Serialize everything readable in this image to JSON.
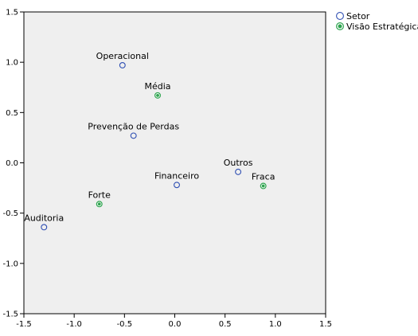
{
  "chart_data": {
    "type": "scatter",
    "xlim": [
      -1.5,
      1.5
    ],
    "ylim": [
      -1.5,
      1.5
    ],
    "x_ticks": [
      -1.5,
      -1.0,
      -0.5,
      0.0,
      0.5,
      1.0,
      1.5
    ],
    "y_ticks": [
      -1.5,
      -1.0,
      -0.5,
      0.0,
      0.5,
      1.0,
      1.5
    ],
    "x_tick_labels": [
      "-1.5",
      "-1.0",
      "-0.5",
      "0.0",
      "0.5",
      "1.0",
      "1.5"
    ],
    "y_tick_labels": [
      "-1.5",
      "-1.0",
      "-0.5",
      "0.0",
      "0.5",
      "1.0",
      "1.5"
    ],
    "plot_background": "#efefef",
    "grid": false,
    "legend_position": "top-right",
    "series": [
      {
        "name": "Setor",
        "marker": "open-circle",
        "color": "#2f4fb3",
        "points": [
          {
            "label": "Operacional",
            "x": -0.52,
            "y": 0.97
          },
          {
            "label": "Prevenção de Perdas",
            "x": -0.41,
            "y": 0.27
          },
          {
            "label": "Financeiro",
            "x": 0.02,
            "y": -0.22
          },
          {
            "label": "Outros",
            "x": 0.63,
            "y": -0.09
          },
          {
            "label": "Auditoria",
            "x": -1.3,
            "y": -0.64
          }
        ]
      },
      {
        "name": "Visão Estratégica",
        "marker": "filled-circle",
        "color": "#2ea44f",
        "points": [
          {
            "label": "Média",
            "x": -0.17,
            "y": 0.67
          },
          {
            "label": "Forte",
            "x": -0.75,
            "y": -0.41
          },
          {
            "label": "Fraca",
            "x": 0.88,
            "y": -0.23
          }
        ]
      }
    ]
  }
}
